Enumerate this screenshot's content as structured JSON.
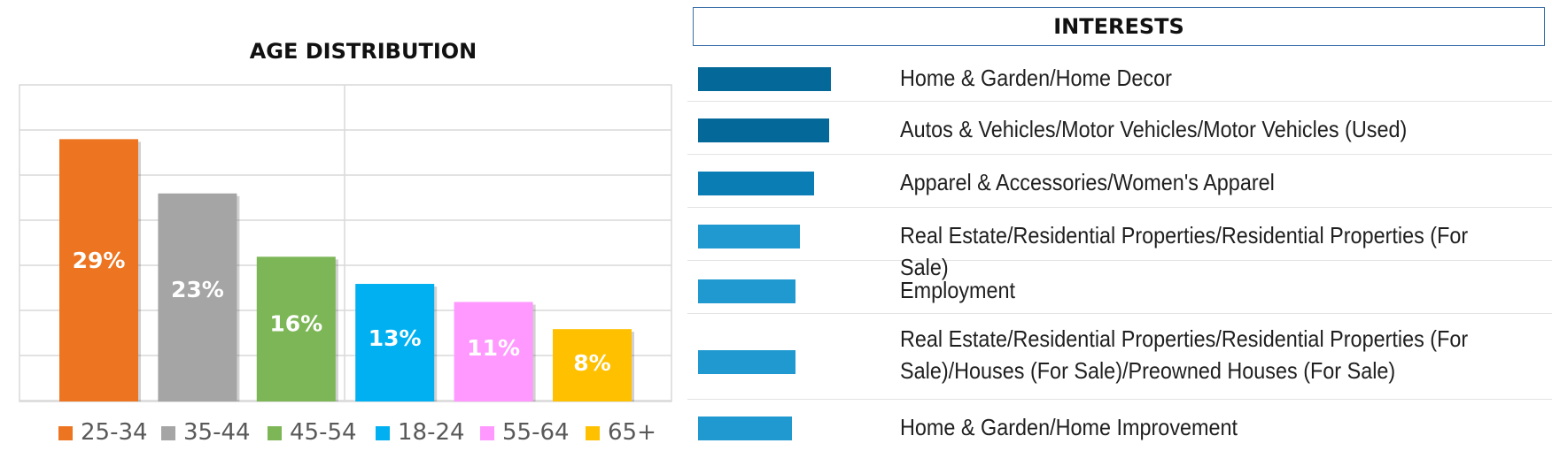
{
  "chart_data": [
    {
      "type": "bar",
      "title": "AGE DISTRIBUTION",
      "categories": [
        "25-34",
        "35-44",
        "45-54",
        "18-24",
        "55-64",
        "65+"
      ],
      "values": [
        29,
        23,
        16,
        13,
        11,
        8
      ],
      "value_labels": [
        "29%",
        "23%",
        "16%",
        "13%",
        "11%",
        "8%"
      ],
      "colors": [
        "#ED7420",
        "#A5A5A5",
        "#7CB656",
        "#00B0F0",
        "#FF99FF",
        "#FFC000"
      ],
      "ylim": [
        0,
        35
      ],
      "grid": true,
      "legend": "bottom"
    },
    {
      "type": "bar",
      "orientation": "horizontal",
      "title": "INTERESTS",
      "categories": [
        "Home & Garden/Home Decor",
        "Autos & Vehicles/Motor Vehicles/Motor Vehicles (Used)",
        "Apparel & Accessories/Women's Apparel",
        "Real Estate/Residential Properties/Residential Properties (For Sale)",
        "Employment",
        "Real Estate/Residential Properties/Residential Properties (For Sale)/Houses (For Sale)/Preowned Houses (For Sale)",
        "Home & Garden/Home Improvement"
      ],
      "values": [
        100,
        98.5,
        87.5,
        76.5,
        73.5,
        73.5,
        70.5
      ],
      "colors": [
        "#046899",
        "#046899",
        "#0B7DB5",
        "#2098D0",
        "#2098D0",
        "#2098D0",
        "#2098D0"
      ],
      "grid": false
    }
  ]
}
